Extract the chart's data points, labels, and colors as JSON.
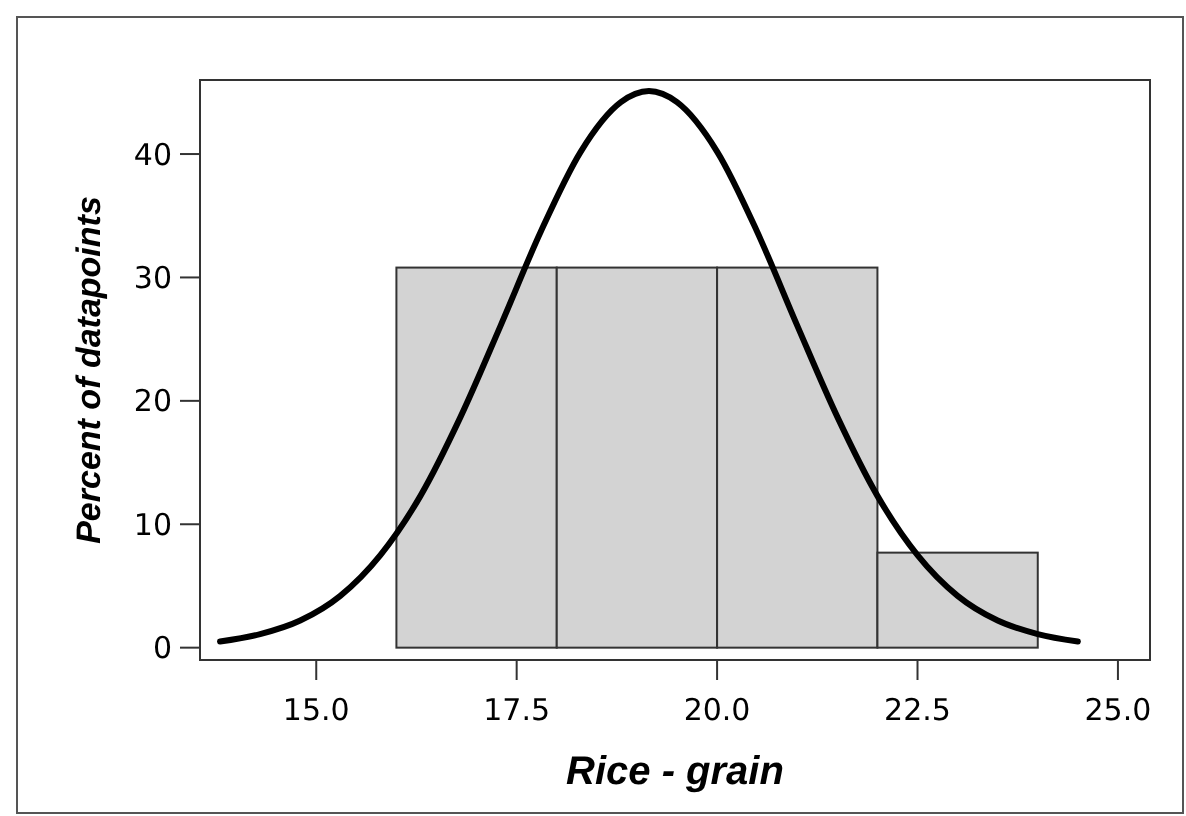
{
  "chart_data": {
    "type": "histogram",
    "xlabel": "Rice - grain",
    "ylabel": "Percent of datapoints",
    "bins": [
      16,
      18,
      20,
      22,
      24
    ],
    "values": [
      30.8,
      30.8,
      30.8,
      7.7
    ],
    "color": "#d3d3d3",
    "series": [
      {
        "type": "line",
        "color": "#000000",
        "x": [
          13.8,
          14.3,
          14.8,
          15.3,
          15.8,
          16.3,
          16.8,
          17.3,
          17.8,
          18.3,
          18.8,
          19.15,
          19.5,
          20.0,
          20.5,
          21.0,
          21.5,
          22.0,
          22.5,
          23.0,
          23.5,
          24.0,
          24.5
        ],
        "values": [
          0.5,
          1.1,
          2.2,
          4.2,
          7.5,
          12.3,
          18.7,
          26.1,
          33.7,
          40.2,
          44.2,
          45.1,
          44.2,
          40.2,
          33.7,
          26.1,
          18.7,
          12.3,
          7.5,
          4.2,
          2.2,
          1.1,
          0.5
        ]
      }
    ],
    "xlim": [
      13.55,
      25.4
    ],
    "ylim": [
      -1,
      46
    ],
    "xticks": [
      {
        "value": 15,
        "label": "15.0"
      },
      {
        "value": 17.5,
        "label": "17.5"
      },
      {
        "value": 20,
        "label": "20.0"
      },
      {
        "value": 22.5,
        "label": "22.5"
      },
      {
        "value": 25,
        "label": "25.0"
      }
    ],
    "yticks": [
      0,
      10,
      20,
      30,
      40
    ],
    "grid": false
  }
}
